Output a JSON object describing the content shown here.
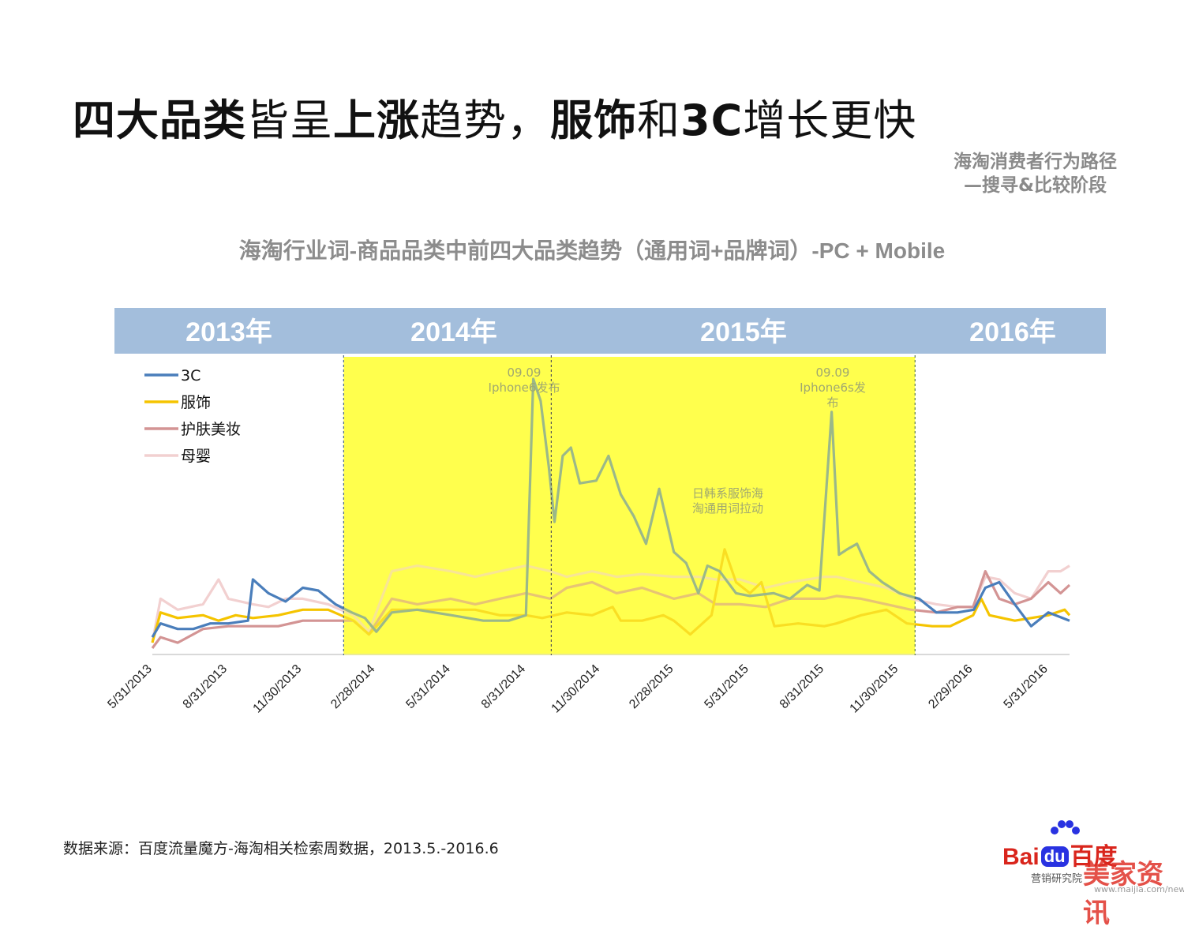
{
  "title": {
    "part1": "四大品类",
    "part2": "皆呈",
    "part3": "上涨",
    "part4": "趋势，",
    "part5": "服饰",
    "part6": "和",
    "part7": "3C",
    "part8": "增长更快"
  },
  "side_note": {
    "line1": "海淘消费者行为路径",
    "line2": "—搜寻&比较阶段"
  },
  "source": "数据来源：百度流量魔方-海淘相关检索周数据，2013.5.-2016.6",
  "logo": {
    "brand": "Bai",
    "du": "du",
    "cn": "百度",
    "sub": "营销研究院",
    "watermark": "美家资讯",
    "url": "www.maijia.com/news"
  },
  "chart_data": {
    "type": "line",
    "title": "海淘行业词-商品品类中前四大品类趋势（通用词+品牌词）-PC + Mobile",
    "year_bands": [
      "2013年",
      "2014年",
      "2015年",
      "2016年"
    ],
    "x_tick_labels": [
      "5/31/2013",
      "8/31/2013",
      "11/30/2013",
      "2/28/2014",
      "5/31/2014",
      "8/31/2014",
      "11/30/2014",
      "2/28/2015",
      "5/31/2015",
      "8/31/2015",
      "11/30/2015",
      "2/29/2016",
      "5/31/2016"
    ],
    "x_range": [
      "2013-05-31",
      "2016-06-26"
    ],
    "y_range": [
      0,
      100
    ],
    "y_axis_labels": false,
    "grid": false,
    "legend_position": "top-left",
    "highlight_range": [
      "2014-01-20",
      "2015-12-20"
    ],
    "highlight_color": "#ffff4d",
    "divider_date": "2014-10-01",
    "annotations": [
      {
        "text_lines": [
          "09.09",
          "Iphone6发布"
        ],
        "date": "2014-09-09"
      },
      {
        "text_lines": [
          "09.09",
          "Iphone6s发",
          "布"
        ],
        "date": "2015-09-09"
      },
      {
        "text_lines": [
          "日韩系服饰海",
          "淘通用词拉动"
        ],
        "date": "2015-05-01"
      }
    ],
    "series": [
      {
        "name": "3C",
        "color": "#4a7ebb",
        "points": [
          [
            "2013-05-31",
            6
          ],
          [
            "2013-06-10",
            11
          ],
          [
            "2013-07-01",
            9
          ],
          [
            "2013-07-20",
            9
          ],
          [
            "2013-08-10",
            11
          ],
          [
            "2013-09-01",
            11
          ],
          [
            "2013-09-25",
            12
          ],
          [
            "2013-10-01",
            27
          ],
          [
            "2013-10-20",
            22
          ],
          [
            "2013-11-10",
            19
          ],
          [
            "2013-12-01",
            24
          ],
          [
            "2013-12-20",
            23
          ],
          [
            "2014-01-10",
            18
          ],
          [
            "2014-01-30",
            15
          ],
          [
            "2014-02-15",
            13
          ],
          [
            "2014-03-01",
            8
          ],
          [
            "2014-03-20",
            15
          ],
          [
            "2014-04-20",
            16
          ],
          [
            "2014-06-01",
            14
          ],
          [
            "2014-07-10",
            12
          ],
          [
            "2014-08-10",
            12
          ],
          [
            "2014-08-31",
            14
          ],
          [
            "2014-09-09",
            100
          ],
          [
            "2014-09-18",
            92
          ],
          [
            "2014-09-28",
            68
          ],
          [
            "2014-10-05",
            48
          ],
          [
            "2014-10-15",
            72
          ],
          [
            "2014-10-25",
            75
          ],
          [
            "2014-11-05",
            62
          ],
          [
            "2014-11-25",
            63
          ],
          [
            "2014-12-10",
            72
          ],
          [
            "2014-12-25",
            58
          ],
          [
            "2015-01-10",
            50
          ],
          [
            "2015-01-25",
            40
          ],
          [
            "2015-02-10",
            60
          ],
          [
            "2015-02-28",
            37
          ],
          [
            "2015-03-15",
            33
          ],
          [
            "2015-03-30",
            22
          ],
          [
            "2015-04-10",
            32
          ],
          [
            "2015-04-25",
            30
          ],
          [
            "2015-05-15",
            22
          ],
          [
            "2015-06-01",
            21
          ],
          [
            "2015-06-30",
            22
          ],
          [
            "2015-07-20",
            20
          ],
          [
            "2015-08-10",
            25
          ],
          [
            "2015-08-25",
            23
          ],
          [
            "2015-09-09",
            88
          ],
          [
            "2015-09-18",
            36
          ],
          [
            "2015-09-28",
            38
          ],
          [
            "2015-10-10",
            40
          ],
          [
            "2015-10-25",
            30
          ],
          [
            "2015-11-10",
            26
          ],
          [
            "2015-12-01",
            22
          ],
          [
            "2015-12-25",
            20
          ],
          [
            "2016-01-15",
            15
          ],
          [
            "2016-02-10",
            15
          ],
          [
            "2016-03-01",
            16
          ],
          [
            "2016-03-15",
            24
          ],
          [
            "2016-04-01",
            26
          ],
          [
            "2016-04-20",
            18
          ],
          [
            "2016-05-10",
            10
          ],
          [
            "2016-05-31",
            15
          ],
          [
            "2016-06-26",
            12
          ]
        ]
      },
      {
        "name": "服饰",
        "color": "#f5c400",
        "points": [
          [
            "2013-05-31",
            4
          ],
          [
            "2013-06-10",
            15
          ],
          [
            "2013-07-01",
            13
          ],
          [
            "2013-08-01",
            14
          ],
          [
            "2013-08-20",
            12
          ],
          [
            "2013-09-10",
            14
          ],
          [
            "2013-10-01",
            13
          ],
          [
            "2013-11-01",
            14
          ],
          [
            "2013-12-01",
            16
          ],
          [
            "2014-01-01",
            16
          ],
          [
            "2014-02-01",
            12
          ],
          [
            "2014-02-20",
            7
          ],
          [
            "2014-03-20",
            16
          ],
          [
            "2014-04-20",
            16
          ],
          [
            "2014-05-31",
            16
          ],
          [
            "2014-06-30",
            16
          ],
          [
            "2014-07-30",
            14
          ],
          [
            "2014-08-31",
            14
          ],
          [
            "2014-09-20",
            13
          ],
          [
            "2014-10-20",
            15
          ],
          [
            "2014-11-20",
            14
          ],
          [
            "2014-12-15",
            17
          ],
          [
            "2014-12-25",
            12
          ],
          [
            "2015-01-20",
            12
          ],
          [
            "2015-02-15",
            14
          ],
          [
            "2015-02-28",
            12
          ],
          [
            "2015-03-20",
            7
          ],
          [
            "2015-04-15",
            14
          ],
          [
            "2015-05-01",
            38
          ],
          [
            "2015-05-15",
            26
          ],
          [
            "2015-06-01",
            22
          ],
          [
            "2015-06-15",
            26
          ],
          [
            "2015-07-01",
            10
          ],
          [
            "2015-07-30",
            11
          ],
          [
            "2015-08-31",
            10
          ],
          [
            "2015-09-15",
            11
          ],
          [
            "2015-10-15",
            14
          ],
          [
            "2015-11-15",
            16
          ],
          [
            "2015-12-10",
            11
          ],
          [
            "2016-01-10",
            10
          ],
          [
            "2016-02-01",
            10
          ],
          [
            "2016-02-29",
            14
          ],
          [
            "2016-03-10",
            20
          ],
          [
            "2016-03-20",
            14
          ],
          [
            "2016-04-20",
            12
          ],
          [
            "2016-05-31",
            14
          ],
          [
            "2016-06-20",
            16
          ],
          [
            "2016-06-26",
            14
          ]
        ]
      },
      {
        "name": "护肤美妆",
        "color": "#d39494",
        "points": [
          [
            "2013-05-31",
            2
          ],
          [
            "2013-06-10",
            6
          ],
          [
            "2013-07-01",
            4
          ],
          [
            "2013-08-01",
            9
          ],
          [
            "2013-09-01",
            10
          ],
          [
            "2013-10-01",
            10
          ],
          [
            "2013-11-01",
            10
          ],
          [
            "2013-12-01",
            12
          ],
          [
            "2014-01-01",
            12
          ],
          [
            "2014-02-01",
            12
          ],
          [
            "2014-02-20",
            7
          ],
          [
            "2014-03-20",
            20
          ],
          [
            "2014-04-20",
            18
          ],
          [
            "2014-05-31",
            20
          ],
          [
            "2014-06-30",
            18
          ],
          [
            "2014-07-30",
            20
          ],
          [
            "2014-08-31",
            22
          ],
          [
            "2014-09-30",
            20
          ],
          [
            "2014-10-20",
            24
          ],
          [
            "2014-11-20",
            26
          ],
          [
            "2014-12-20",
            22
          ],
          [
            "2015-01-20",
            24
          ],
          [
            "2015-02-28",
            20
          ],
          [
            "2015-03-30",
            22
          ],
          [
            "2015-04-20",
            18
          ],
          [
            "2015-05-20",
            18
          ],
          [
            "2015-06-20",
            17
          ],
          [
            "2015-07-20",
            20
          ],
          [
            "2015-08-31",
            20
          ],
          [
            "2015-09-15",
            21
          ],
          [
            "2015-10-15",
            20
          ],
          [
            "2015-11-15",
            18
          ],
          [
            "2015-12-15",
            16
          ],
          [
            "2016-01-15",
            15
          ],
          [
            "2016-02-10",
            17
          ],
          [
            "2016-02-29",
            17
          ],
          [
            "2016-03-15",
            30
          ],
          [
            "2016-04-01",
            20
          ],
          [
            "2016-04-20",
            18
          ],
          [
            "2016-05-10",
            20
          ],
          [
            "2016-05-31",
            26
          ],
          [
            "2016-06-15",
            22
          ],
          [
            "2016-06-26",
            25
          ]
        ]
      },
      {
        "name": "母婴",
        "color": "#f2d0d0",
        "points": [
          [
            "2013-05-31",
            4
          ],
          [
            "2013-06-10",
            20
          ],
          [
            "2013-07-01",
            16
          ],
          [
            "2013-08-01",
            18
          ],
          [
            "2013-08-20",
            27
          ],
          [
            "2013-09-01",
            20
          ],
          [
            "2013-10-01",
            18
          ],
          [
            "2013-10-20",
            17
          ],
          [
            "2013-11-10",
            20
          ],
          [
            "2013-12-01",
            20
          ],
          [
            "2014-01-01",
            18
          ],
          [
            "2014-02-01",
            14
          ],
          [
            "2014-02-20",
            8
          ],
          [
            "2014-03-20",
            30
          ],
          [
            "2014-04-20",
            32
          ],
          [
            "2014-05-31",
            30
          ],
          [
            "2014-06-30",
            28
          ],
          [
            "2014-07-30",
            30
          ],
          [
            "2014-08-31",
            32
          ],
          [
            "2014-09-30",
            30
          ],
          [
            "2014-10-20",
            28
          ],
          [
            "2014-11-20",
            30
          ],
          [
            "2014-12-20",
            28
          ],
          [
            "2015-01-20",
            29
          ],
          [
            "2015-02-28",
            28
          ],
          [
            "2015-03-30",
            28
          ],
          [
            "2015-04-20",
            27
          ],
          [
            "2015-05-20",
            27
          ],
          [
            "2015-06-20",
            24
          ],
          [
            "2015-07-20",
            26
          ],
          [
            "2015-08-31",
            28
          ],
          [
            "2015-09-15",
            28
          ],
          [
            "2015-10-15",
            26
          ],
          [
            "2015-11-15",
            24
          ],
          [
            "2015-12-15",
            20
          ],
          [
            "2016-01-15",
            18
          ],
          [
            "2016-02-10",
            17
          ],
          [
            "2016-02-29",
            17
          ],
          [
            "2016-03-15",
            28
          ],
          [
            "2016-04-01",
            27
          ],
          [
            "2016-04-20",
            22
          ],
          [
            "2016-05-10",
            20
          ],
          [
            "2016-05-31",
            30
          ],
          [
            "2016-06-15",
            30
          ],
          [
            "2016-06-26",
            32
          ]
        ]
      }
    ]
  }
}
